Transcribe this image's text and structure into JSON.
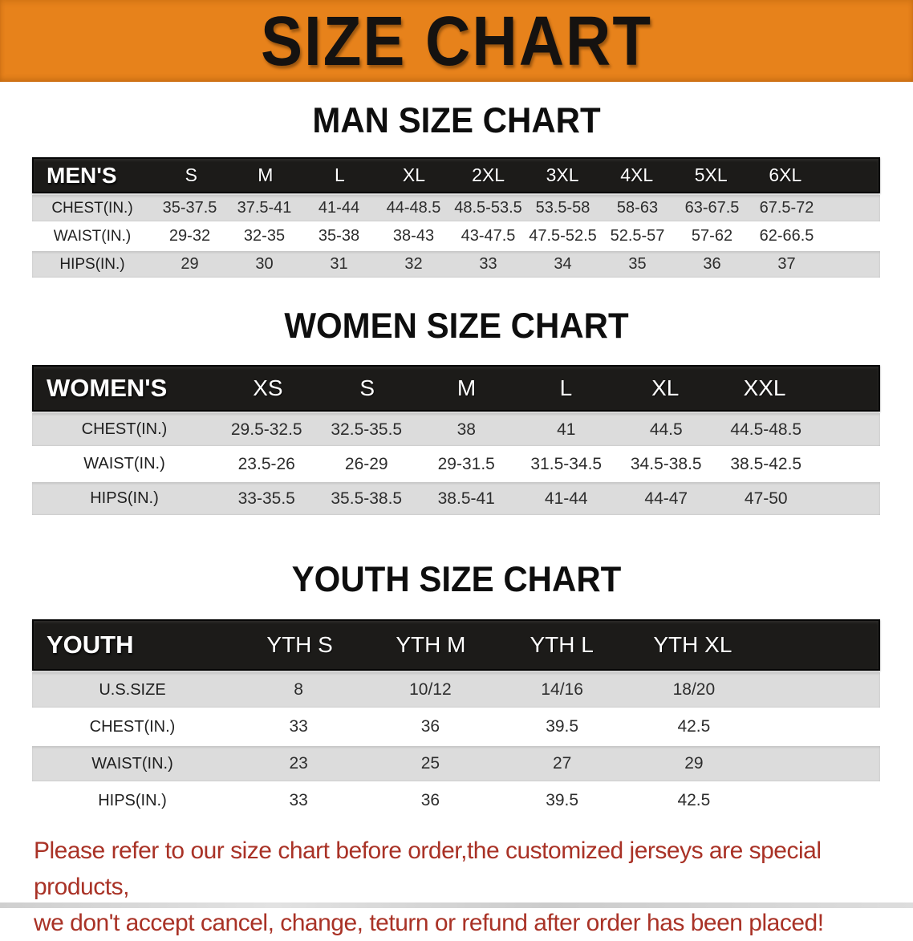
{
  "banner": {
    "title": "SIZE CHART"
  },
  "men": {
    "heading": "MAN SIZE CHART",
    "corner_label": "MEN'S",
    "columns": [
      "S",
      "M",
      "L",
      "XL",
      "2XL",
      "3XL",
      "4XL",
      "5XL",
      "6XL"
    ],
    "rows": [
      {
        "label": "CHEST(IN.)",
        "values": [
          "35-37.5",
          "37.5-41",
          "41-44",
          "44-48.5",
          "48.5-53.5",
          "53.5-58",
          "58-63",
          "63-67.5",
          "67.5-72"
        ]
      },
      {
        "label": "WAIST(IN.)",
        "values": [
          "29-32",
          "32-35",
          "35-38",
          "38-43",
          "43-47.5",
          "47.5-52.5",
          "52.5-57",
          "57-62",
          "62-66.5"
        ]
      },
      {
        "label": "HIPS(IN.)",
        "values": [
          "29",
          "30",
          "31",
          "32",
          "33",
          "34",
          "35",
          "36",
          "37"
        ]
      }
    ]
  },
  "women": {
    "heading": "WOMEN SIZE CHART",
    "corner_label": "WOMEN'S",
    "columns": [
      "XS",
      "S",
      "M",
      "L",
      "XL",
      "XXL"
    ],
    "rows": [
      {
        "label": "CHEST(IN.)",
        "values": [
          "29.5-32.5",
          "32.5-35.5",
          "38",
          "41",
          "44.5",
          "44.5-48.5"
        ]
      },
      {
        "label": "WAIST(IN.)",
        "values": [
          "23.5-26",
          "26-29",
          "29-31.5",
          "31.5-34.5",
          "34.5-38.5",
          "38.5-42.5"
        ]
      },
      {
        "label": "HIPS(IN.)",
        "values": [
          "33-35.5",
          "35.5-38.5",
          "38.5-41",
          "41-44",
          "44-47",
          "47-50"
        ]
      }
    ]
  },
  "youth": {
    "heading": "YOUTH SIZE CHART",
    "corner_label": "YOUTH",
    "columns": [
      "YTH S",
      "YTH M",
      "YTH L",
      "YTH XL"
    ],
    "rows": [
      {
        "label": "U.S.SIZE",
        "values": [
          "8",
          "10/12",
          "14/16",
          "18/20"
        ]
      },
      {
        "label": "CHEST(IN.)",
        "values": [
          "33",
          "36",
          "39.5",
          "42.5"
        ]
      },
      {
        "label": "WAIST(IN.)",
        "values": [
          "23",
          "25",
          "27",
          "29"
        ]
      },
      {
        "label": "HIPS(IN.)",
        "values": [
          "33",
          "36",
          "39.5",
          "42.5"
        ]
      }
    ]
  },
  "disclaimer": {
    "line1": "Please refer to our size chart before order,the customized jerseys are special products,",
    "line2": "we don't accept cancel, change, teturn or refund after order has been placed!"
  },
  "colors": {
    "banner_bg": "#E7821B",
    "banner_text": "#151210",
    "table_header_bg": "#1C1B19",
    "row_gray": "#DCDCDC",
    "row_white": "#FFFFFF",
    "disclaimer_red": "#A93226"
  }
}
